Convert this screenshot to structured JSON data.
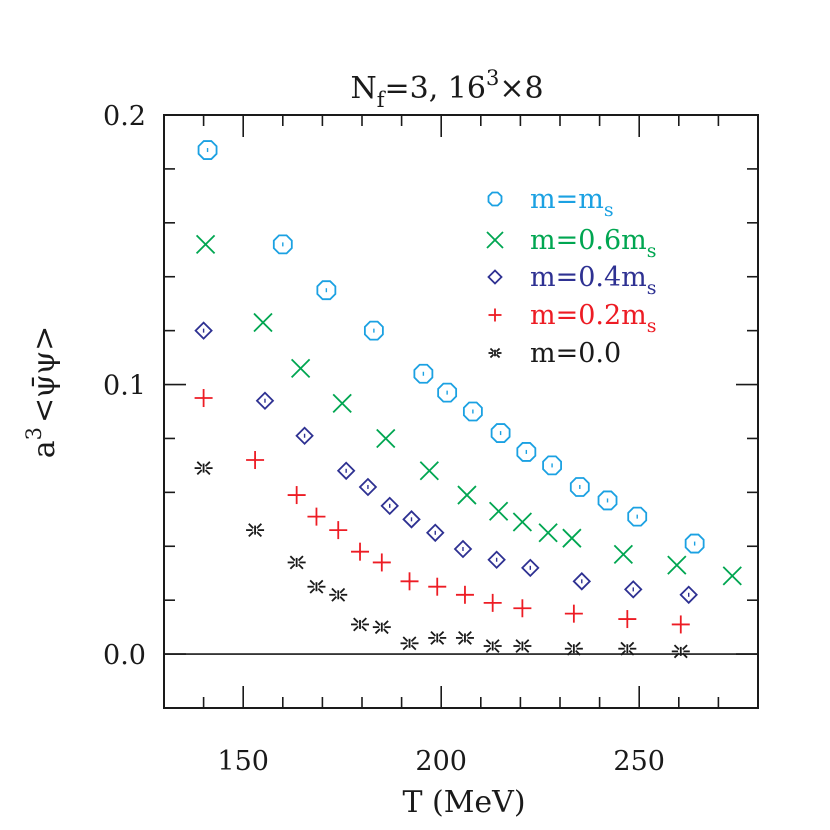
{
  "chart_data": {
    "type": "scatter",
    "title": "N_f=3, 16^3×8",
    "title_parts": {
      "n": "N",
      "sub": "f",
      "eq": "=3,  16",
      "sup": "3",
      "tail": "×8"
    },
    "xlabel": "T (MeV)",
    "ylabel": "a^3 <ψ̄ψ>",
    "ylabel_parts": {
      "a": "a",
      "sup": "3",
      "expr": "<ψ̄ψ>"
    },
    "xlim": [
      130,
      280
    ],
    "ylim": [
      -0.02,
      0.2
    ],
    "x_major_ticks": [
      150,
      200,
      250
    ],
    "x_tick_labels": [
      "150",
      "200",
      "250"
    ],
    "x_minor_step": 10,
    "y_major_ticks": [
      0.0,
      0.1,
      0.2
    ],
    "y_tick_labels": [
      "0.0",
      "0.1",
      "0.2"
    ],
    "y_minor_step": 0.02,
    "zero_line": true,
    "grid": false,
    "legend_position": "upper right",
    "series": [
      {
        "name": "m=m_s",
        "label_main": "m=m",
        "label_sub": "s",
        "marker": "octagon",
        "color": "#1ba1e2",
        "x": [
          141,
          160,
          171,
          183,
          195.5,
          201.5,
          208,
          215,
          221.5,
          228,
          235,
          242,
          249.5,
          264
        ],
        "y": [
          0.187,
          0.152,
          0.135,
          0.12,
          0.104,
          0.097,
          0.09,
          0.082,
          0.075,
          0.07,
          0.062,
          0.057,
          0.051,
          0.041
        ]
      },
      {
        "name": "m=0.6m_s",
        "label_main": "m=0.6m",
        "label_sub": "s",
        "marker": "x",
        "color": "#00a651",
        "x": [
          140.5,
          155,
          164.5,
          175,
          186,
          197,
          206.5,
          214.5,
          220.5,
          227,
          233,
          246,
          259.5,
          273.5
        ],
        "y": [
          0.152,
          0.123,
          0.106,
          0.093,
          0.08,
          0.068,
          0.059,
          0.053,
          0.049,
          0.045,
          0.043,
          0.037,
          0.033,
          0.029
        ]
      },
      {
        "name": "m=0.4m_s",
        "label_main": "m=0.4m",
        "label_sub": "s",
        "marker": "diamond",
        "color": "#2e3192",
        "x": [
          140,
          155.5,
          165.5,
          176,
          181.5,
          187,
          192.5,
          198.5,
          205.5,
          214,
          222.5,
          235.5,
          248.5,
          262.5
        ],
        "y": [
          0.12,
          0.094,
          0.081,
          0.068,
          0.062,
          0.055,
          0.05,
          0.045,
          0.039,
          0.035,
          0.032,
          0.027,
          0.024,
          0.022
        ]
      },
      {
        "name": "m=0.2m_s",
        "label_main": "m=0.2m",
        "label_sub": "s",
        "marker": "plus",
        "color": "#ed1c24",
        "x": [
          140,
          153,
          163.5,
          168.5,
          174,
          179.5,
          185,
          192,
          199,
          206,
          213,
          220.5,
          233.5,
          247,
          260.5
        ],
        "y": [
          0.095,
          0.072,
          0.059,
          0.051,
          0.046,
          0.038,
          0.034,
          0.027,
          0.025,
          0.022,
          0.019,
          0.017,
          0.015,
          0.013,
          0.011
        ]
      },
      {
        "name": "m=0.0",
        "label_main": "m=0.0",
        "label_sub": "",
        "marker": "asterisk",
        "color": "#1a1a1a",
        "x": [
          140,
          153,
          163.5,
          168.5,
          174,
          179.5,
          185,
          192,
          199,
          206,
          213,
          220.5,
          233.5,
          247,
          260.5
        ],
        "y": [
          0.069,
          0.046,
          0.034,
          0.025,
          0.022,
          0.011,
          0.01,
          0.004,
          0.006,
          0.006,
          0.003,
          0.003,
          0.002,
          0.002,
          0.001
        ]
      }
    ]
  }
}
